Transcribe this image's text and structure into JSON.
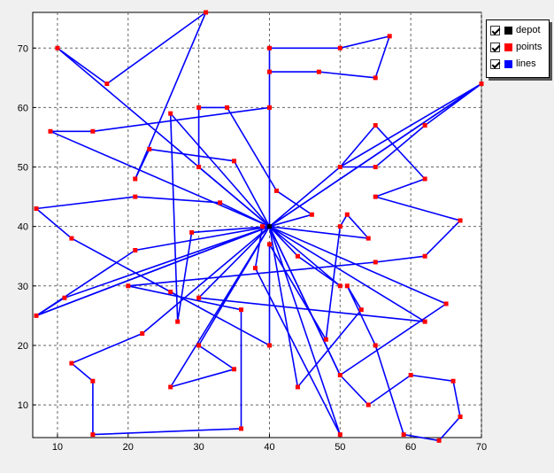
{
  "legend": {
    "items": [
      {
        "label": "depot",
        "color": "#000000",
        "checked": true
      },
      {
        "label": "points",
        "color": "#ff0000",
        "checked": true
      },
      {
        "label": "lines",
        "color": "#0000ff",
        "checked": true
      }
    ]
  },
  "chart_data": {
    "type": "line",
    "title": "",
    "xlabel": "",
    "ylabel": "",
    "xlim": [
      6.5,
      70
    ],
    "ylim": [
      4.5,
      76
    ],
    "x_ticks": [
      10,
      20,
      30,
      40,
      50,
      60,
      70
    ],
    "y_ticks": [
      10,
      20,
      30,
      40,
      50,
      60,
      70
    ],
    "grid": true,
    "grid_style": "dashed",
    "legend_position": "top-right",
    "colors": {
      "lines": "#0000ff",
      "points": "#ff0000",
      "grid": "#666666"
    },
    "depot": [
      40,
      40
    ],
    "routes": [
      [
        [
          40,
          40
        ],
        [
          22,
          22
        ],
        [
          12,
          17
        ],
        [
          15,
          14
        ],
        [
          15,
          5
        ],
        [
          36,
          6
        ],
        [
          36,
          26
        ],
        [
          20,
          30
        ],
        [
          55,
          34
        ],
        [
          62,
          35
        ],
        [
          67,
          41
        ],
        [
          55,
          45
        ],
        [
          62,
          48
        ],
        [
          55,
          57
        ],
        [
          50,
          50
        ],
        [
          70,
          64
        ],
        [
          40,
          40
        ]
      ],
      [
        [
          40,
          40
        ],
        [
          44,
          13
        ],
        [
          53,
          26
        ],
        [
          51,
          30
        ],
        [
          55,
          20
        ],
        [
          59,
          5
        ],
        [
          64,
          4
        ],
        [
          67,
          8
        ],
        [
          66,
          14
        ],
        [
          60,
          15
        ],
        [
          54,
          10
        ],
        [
          50,
          15
        ],
        [
          40,
          40
        ]
      ],
      [
        [
          40,
          40
        ],
        [
          33,
          44
        ],
        [
          21,
          45
        ],
        [
          7,
          43
        ],
        [
          12,
          38
        ],
        [
          26,
          29
        ],
        [
          40,
          20
        ],
        [
          40,
          37
        ],
        [
          48,
          21
        ],
        [
          50,
          40
        ],
        [
          51,
          42
        ],
        [
          54,
          38
        ],
        [
          40,
          40
        ]
      ],
      [
        [
          40,
          40
        ],
        [
          9,
          56
        ],
        [
          15,
          56
        ],
        [
          40,
          60
        ],
        [
          40,
          66
        ],
        [
          47,
          66
        ],
        [
          55,
          65
        ],
        [
          57,
          72
        ],
        [
          50,
          70
        ],
        [
          40,
          70
        ],
        [
          40,
          40
        ]
      ],
      [
        [
          40,
          40
        ],
        [
          50,
          50
        ],
        [
          55,
          50
        ],
        [
          62,
          57
        ],
        [
          70,
          64
        ],
        [
          40,
          40
        ]
      ],
      [
        [
          40,
          40
        ],
        [
          10,
          70
        ],
        [
          17,
          64
        ],
        [
          31,
          76
        ],
        [
          21,
          48
        ],
        [
          23,
          53
        ],
        [
          35,
          51
        ],
        [
          40,
          40
        ]
      ],
      [
        [
          40,
          40
        ],
        [
          46,
          42
        ],
        [
          41,
          46
        ],
        [
          34,
          60
        ],
        [
          30,
          60
        ],
        [
          30,
          50
        ],
        [
          40,
          40
        ]
      ],
      [
        [
          40,
          40
        ],
        [
          21,
          36
        ],
        [
          7,
          25
        ],
        [
          40,
          40
        ]
      ],
      [
        [
          40,
          40
        ],
        [
          50,
          5
        ],
        [
          38,
          33
        ],
        [
          39,
          40
        ],
        [
          40,
          40
        ]
      ],
      [
        [
          40,
          40
        ],
        [
          26,
          13
        ],
        [
          35,
          16
        ],
        [
          30,
          20
        ],
        [
          40,
          40
        ]
      ],
      [
        [
          40,
          40
        ],
        [
          44,
          35
        ],
        [
          50,
          30
        ],
        [
          40,
          40
        ]
      ],
      [
        [
          40,
          40
        ],
        [
          29,
          39
        ],
        [
          27,
          24
        ],
        [
          26,
          59
        ],
        [
          40,
          40
        ]
      ],
      [
        [
          40,
          40
        ],
        [
          65,
          27
        ],
        [
          50,
          15
        ],
        [
          40,
          40
        ]
      ],
      [
        [
          40,
          40
        ],
        [
          62,
          24
        ],
        [
          30,
          28
        ],
        [
          40,
          40
        ]
      ],
      [
        [
          40,
          40
        ],
        [
          11,
          28
        ],
        [
          7,
          25
        ],
        [
          40,
          40
        ]
      ]
    ]
  }
}
